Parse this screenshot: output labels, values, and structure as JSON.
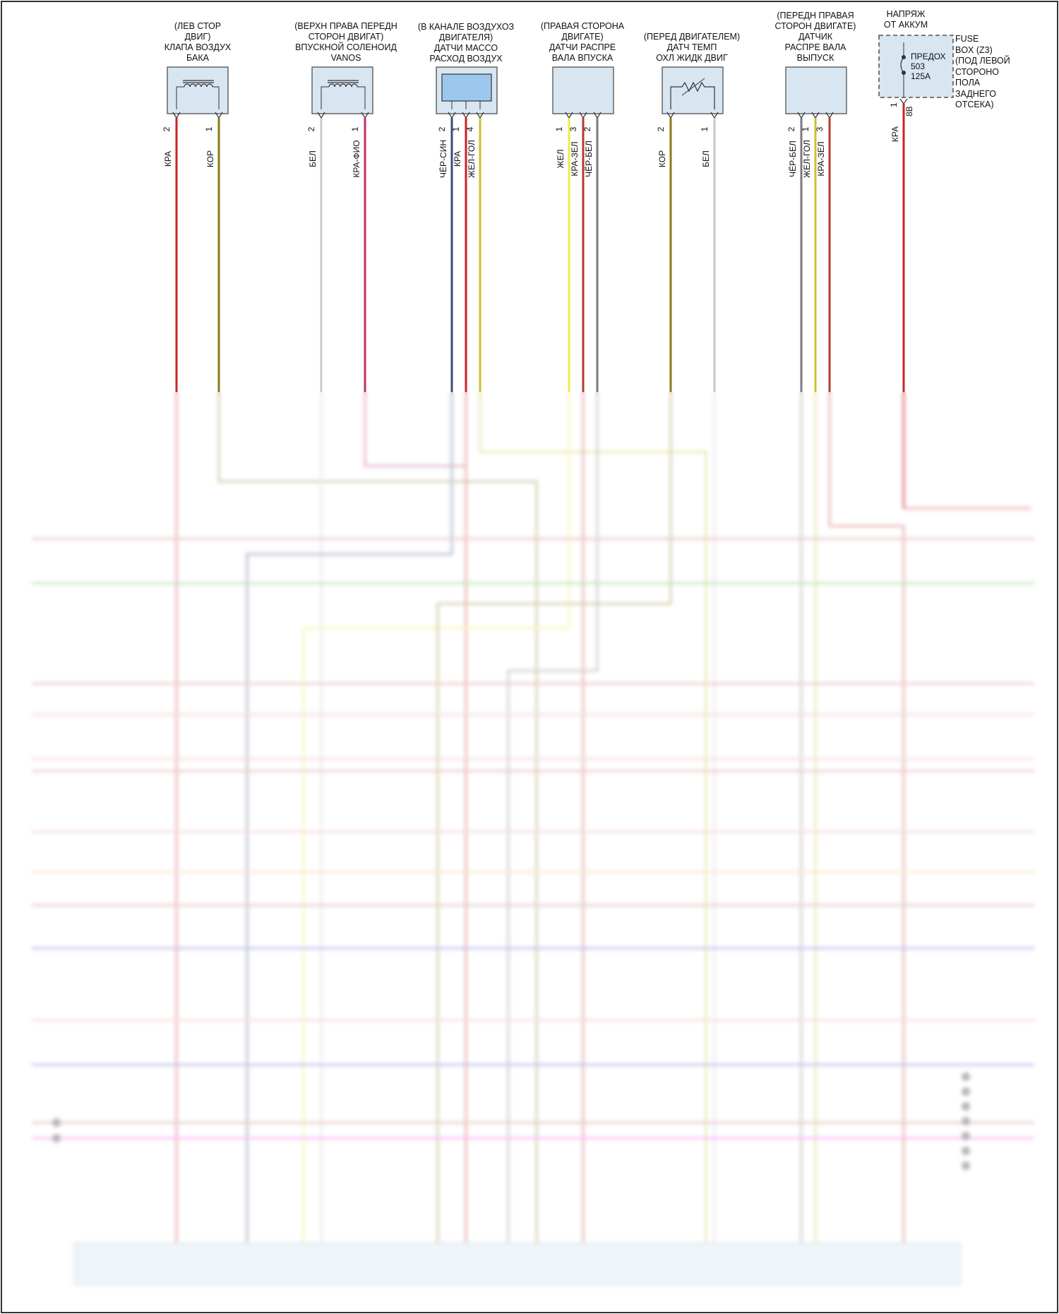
{
  "components": [
    {
      "id": "c1",
      "label": "(ЛЕВ СТОР\nДВИГ)\nКЛАПА ВОЗДУХ\nБАКА",
      "pins": [
        "2",
        "1"
      ],
      "wires": [
        "КРА",
        "КОР"
      ],
      "colors": [
        "#cc2222",
        "#8a7a1a"
      ],
      "icon": "solenoid-coil-icon"
    },
    {
      "id": "c2",
      "label": "(ВЕРХН ПРАВА ПЕРЕДН\nСТОРОН ДВИГАТ)\nВПУСКНОЙ СОЛЕНОИД\nVANOS",
      "pins": [
        "2",
        "1"
      ],
      "wires": [
        "БЕЛ",
        "КРА-ФИО"
      ],
      "colors": [
        "#c9c9c9",
        "#c0306a"
      ],
      "icon": "solenoid-coil-icon"
    },
    {
      "id": "c3",
      "label": "(В КАНАЛЕ ВОЗДУХОЗ\nДВИГАТЕЛЯ)\nДАТЧИ МАССО\nРАСХОД ВОЗДУХ",
      "pins": [
        "2",
        "1",
        "4"
      ],
      "wires": [
        "ЧЁР-СИН",
        "КРА",
        "ЖЕЛ-ГОЛ"
      ],
      "colors": [
        "#3a4a7a",
        "#cc2222",
        "#c9c230"
      ],
      "icon": "sensor-element-icon"
    },
    {
      "id": "c4",
      "label": "(ПРАВАЯ СТОРОНА\nДВИГАТЕ)\nДАТЧИ РАСПРЕ\nВАЛА ВПУСКА",
      "pins": [
        "1",
        "3",
        "2"
      ],
      "wires": [
        "ЖЕЛ",
        "КРА-ЗЕЛ",
        "ЧЁР-БЕЛ"
      ],
      "colors": [
        "#eeee44",
        "#b83a2a",
        "#7a7a82"
      ],
      "icon": ""
    },
    {
      "id": "c5",
      "label": "(ПЕРЕД ДВИГАТЕЛЕМ)\nДАТЧ ТЕМП\nОХЛ ЖИДК ДВИГ",
      "pins": [
        "2",
        "1"
      ],
      "wires": [
        "КОР",
        "БЕЛ"
      ],
      "colors": [
        "#8a7a1a",
        "#c9c9c9"
      ],
      "icon": "thermistor-icon"
    },
    {
      "id": "c6",
      "label": "(ПЕРЕДН ПРАВАЯ\nСТОРОН ДВИГАТЕ)\nДАТЧИК\nРАСПРЕ ВАЛА\nВЫПУСК",
      "pins": [
        "2",
        "1",
        "3"
      ],
      "wires": [
        "ЧЁР-БЕЛ",
        "ЖЕЛ-ГОЛ",
        "КРА-ЗЕЛ"
      ],
      "colors": [
        "#7a7a82",
        "#c9c230",
        "#b83a2a"
      ],
      "icon": ""
    }
  ],
  "battery": {
    "label": "НАПРЯЖ\nОТ АККУМ",
    "fuse": "ПРЕДОХ\n503\n125A",
    "box": "FUSE\nBOX (Z3)\n(ПОД ЛЕВОЙ\nСТОРОНО\nПОЛА\nЗАДНЕГО\nОТСЕКА)",
    "pin_top": "1",
    "pin_code": "8В",
    "wire": "КРА",
    "color": "#cc2222"
  }
}
